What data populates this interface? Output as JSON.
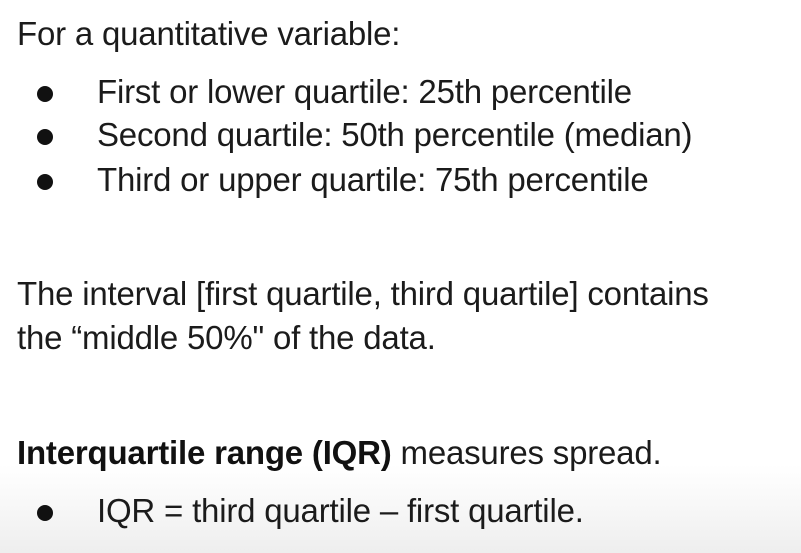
{
  "intro": "For a quantitative variable:",
  "quartiles": [
    "First or lower quartile: 25th percentile",
    "Second quartile: 50th percentile (median)",
    "Third or upper quartile: 75th percentile"
  ],
  "interval_line1": "The interval [first quartile, third quartile] contains",
  "interval_line2": "the “middle 50%\" of the data.",
  "iqr_bold": "Interquartile range (IQR)",
  "iqr_rest": " measures spread.",
  "iqr_bullet": "IQR = third quartile – first quartile."
}
